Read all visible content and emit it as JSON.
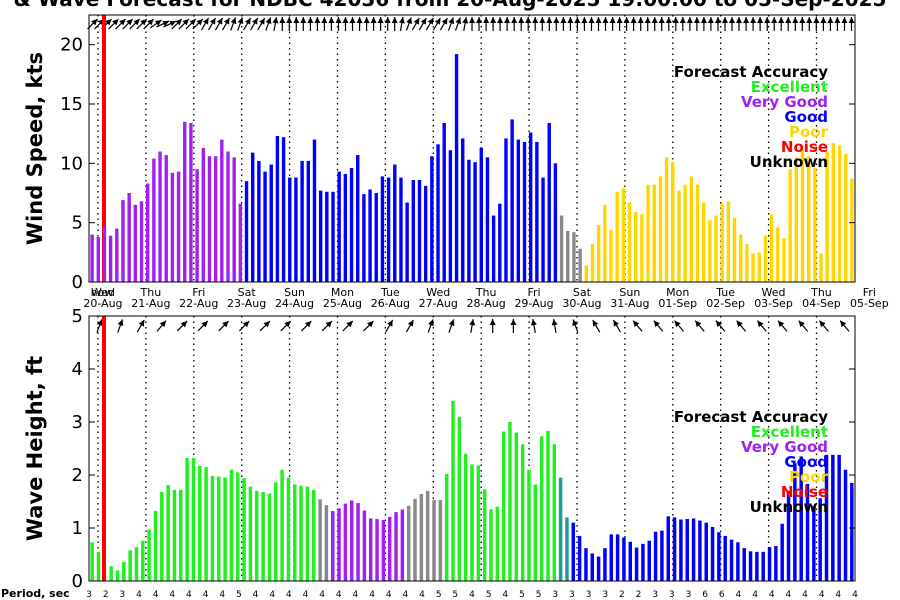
{
  "chart_data": {
    "title": "& Wave Forecast for NDBC 42036 from 20-Aug-2025 19:00:00 to 05-Sep-2025",
    "days": [
      {
        "dow": "Wed",
        "date": "20-Aug"
      },
      {
        "dow": "Thu",
        "date": "21-Aug"
      },
      {
        "dow": "Fri",
        "date": "22-Aug"
      },
      {
        "dow": "Sat",
        "date": "23-Aug"
      },
      {
        "dow": "Sun",
        "date": "24-Aug"
      },
      {
        "dow": "Mon",
        "date": "25-Aug"
      },
      {
        "dow": "Tue",
        "date": "26-Aug"
      },
      {
        "dow": "Wed",
        "date": "27-Aug"
      },
      {
        "dow": "Thu",
        "date": "28-Aug"
      },
      {
        "dow": "Fri",
        "date": "29-Aug"
      },
      {
        "dow": "Sat",
        "date": "30-Aug"
      },
      {
        "dow": "Sun",
        "date": "31-Aug"
      },
      {
        "dow": "Mon",
        "date": "01-Sep"
      },
      {
        "dow": "Tue",
        "date": "02-Sep"
      },
      {
        "dow": "Wed",
        "date": "03-Sep"
      },
      {
        "dow": "Thu",
        "date": "04-Sep"
      },
      {
        "dow": "Fri",
        "date": "05-Sep"
      }
    ],
    "now_marker": "now",
    "legend": {
      "title": "Forecast Accuracy",
      "entries": [
        {
          "label": "Excellent",
          "color": "#22ee22"
        },
        {
          "label": "Very Good",
          "color": "#a020f0"
        },
        {
          "label": "Good",
          "color": "#0000ff"
        },
        {
          "label": "Poor",
          "color": "#ffd700"
        },
        {
          "label": "Noise",
          "color": "#ff0000"
        },
        {
          "label": "Unknown",
          "color": "#000000"
        }
      ]
    },
    "colors": {
      "excellent": "#22ee22",
      "very_good": "#a020f0",
      "good": "#0000ff",
      "poor": "#ffd700",
      "noise": "#ff0000",
      "unknown": "#000000",
      "grey": "#888888",
      "good_purple_blend": "#5a6bd8",
      "verygood_green_blend": "#7a8a7a",
      "green_blue_blend": "#229999"
    },
    "wind": {
      "type": "bar",
      "ylabel": "Wind Speed, kts",
      "ylim": [
        0,
        22.5
      ],
      "yticks": [
        0,
        5,
        10,
        15,
        20
      ],
      "values": [
        4.0,
        3.8,
        4.7,
        3.9,
        4.5,
        6.9,
        7.5,
        6.5,
        6.8,
        8.3,
        10.4,
        11.0,
        10.7,
        9.2,
        9.3,
        13.5,
        13.4,
        9.5,
        11.3,
        10.6,
        10.6,
        12.0,
        11.0,
        10.5,
        6.6,
        8.5,
        10.9,
        10.2,
        9.3,
        9.9,
        12.3,
        12.2,
        8.8,
        8.8,
        10.2,
        10.2,
        12.0,
        7.7,
        7.6,
        7.6,
        9.3,
        9.1,
        9.6,
        10.7,
        7.4,
        7.8,
        7.5,
        8.9,
        8.8,
        9.9,
        8.8,
        6.7,
        8.6,
        8.6,
        8.1,
        10.6,
        11.6,
        13.4,
        11.1,
        19.2,
        12.1,
        10.3,
        10.1,
        11.3,
        10.5,
        5.6,
        6.6,
        12.1,
        13.7,
        12.0,
        11.8,
        12.6,
        11.8,
        8.8,
        13.4,
        10.0,
        5.6,
        4.3,
        4.2,
        2.8,
        1.4,
        3.2,
        4.8,
        6.5,
        4.4,
        7.6,
        7.9,
        6.7,
        5.9,
        5.7,
        8.2,
        8.2,
        8.9,
        10.5,
        10.1,
        7.7,
        8.2,
        8.9,
        8.2,
        6.7,
        5.2,
        5.6,
        6.6,
        6.8,
        5.4,
        4.0,
        3.2,
        2.4,
        2.5,
        3.9,
        5.7,
        4.6,
        3.7,
        9.5,
        10.5,
        11.2,
        10.6,
        9.6,
        2.4,
        11.0,
        11.7,
        11.5,
        10.8,
        8.7
      ],
      "accuracy": [
        "VG",
        "VG",
        "VG",
        "VG",
        "VG",
        "VG",
        "VG",
        "VG",
        "VG",
        "VG",
        "VG",
        "VG",
        "VG",
        "VG",
        "VG",
        "VG",
        "VG",
        "VG",
        "VG",
        "VG",
        "VG",
        "VG",
        "VG",
        "VG",
        "VG",
        "GD",
        "GD",
        "GD",
        "GD",
        "GD",
        "GD",
        "GD",
        "GD",
        "GD",
        "GD",
        "GD",
        "GD",
        "GD",
        "GD",
        "GD",
        "GD",
        "GD",
        "GD",
        "GD",
        "GD",
        "GD",
        "GD",
        "GD",
        "GD",
        "GD",
        "GD",
        "GD",
        "GD",
        "GD",
        "GD",
        "GD",
        "GD",
        "GD",
        "GD",
        "GD",
        "GD",
        "GD",
        "GD",
        "GD",
        "GD",
        "GD",
        "GD",
        "GD",
        "GD",
        "GD",
        "GD",
        "GD",
        "GD",
        "GD",
        "GD",
        "GD",
        "GR",
        "GR",
        "GR",
        "GR",
        "PR",
        "PR",
        "PR",
        "PR",
        "PR",
        "PR",
        "PR",
        "PR",
        "PR",
        "PR",
        "PR",
        "PR",
        "PR",
        "PR",
        "PR",
        "PR",
        "PR",
        "PR",
        "PR",
        "PR",
        "PR",
        "PR",
        "PR",
        "PR",
        "PR",
        "PR",
        "PR",
        "PR",
        "PR",
        "PR",
        "PR",
        "PR",
        "PR",
        "PR",
        "PR",
        "PR",
        "PR",
        "PR",
        "PR",
        "PR",
        "PR",
        "PR",
        "PR",
        "PR"
      ]
    },
    "wave": {
      "type": "bar",
      "ylabel": "Wave Height, ft",
      "ylim": [
        0,
        5
      ],
      "yticks": [
        0,
        1,
        2,
        3,
        4,
        5
      ],
      "values": [
        0.73,
        0.55,
        0.0,
        0.28,
        0.2,
        0.36,
        0.58,
        0.64,
        0.76,
        0.97,
        1.32,
        1.68,
        1.81,
        1.72,
        1.72,
        2.32,
        2.32,
        2.17,
        2.15,
        1.98,
        1.97,
        1.95,
        2.1,
        2.05,
        1.94,
        1.78,
        1.7,
        1.68,
        1.65,
        1.86,
        2.1,
        1.95,
        1.82,
        1.8,
        1.78,
        1.72,
        1.54,
        1.43,
        1.32,
        1.37,
        1.46,
        1.52,
        1.47,
        1.33,
        1.18,
        1.17,
        1.15,
        1.21,
        1.3,
        1.35,
        1.42,
        1.55,
        1.64,
        1.7,
        1.53,
        1.53,
        2.02,
        3.4,
        3.1,
        2.4,
        2.2,
        2.18,
        1.73,
        1.35,
        1.4,
        2.82,
        3.0,
        2.8,
        2.58,
        2.1,
        1.82,
        2.73,
        2.83,
        2.58,
        1.95,
        1.2,
        1.1,
        0.85,
        0.62,
        0.52,
        0.46,
        0.62,
        0.88,
        0.88,
        0.82,
        0.74,
        0.63,
        0.7,
        0.76,
        0.93,
        0.95,
        1.22,
        1.2,
        1.16,
        1.17,
        1.18,
        1.14,
        1.1,
        1.02,
        0.92,
        0.85,
        0.78,
        0.73,
        0.62,
        0.56,
        0.55,
        0.55,
        0.64,
        0.66,
        1.08,
        1.7,
        2.22,
        2.35,
        1.83,
        1.42,
        1.56,
        2.38,
        2.38,
        2.38,
        2.1,
        1.85
      ],
      "accuracy": [
        "EX",
        "EX",
        "NS",
        "EX",
        "EX",
        "EX",
        "EX",
        "EX",
        "EX",
        "EX",
        "EX",
        "EX",
        "EX",
        "EX",
        "EX",
        "EX",
        "EX",
        "EX",
        "EX",
        "EX",
        "EX",
        "EX",
        "EX",
        "EX",
        "EX",
        "EX",
        "EX",
        "EX",
        "EX",
        "EX",
        "EX",
        "EX",
        "EX",
        "EX",
        "EX",
        "EX",
        "GR",
        "GR",
        "VG",
        "VG",
        "VG",
        "VG",
        "VG",
        "VG",
        "VG",
        "VG",
        "VG",
        "VG",
        "VG",
        "VG",
        "GR",
        "GR",
        "GR",
        "GR",
        "GR",
        "GR",
        "EX",
        "EX",
        "EX",
        "EX",
        "EX",
        "EX",
        "EX",
        "EX",
        "EX",
        "EX",
        "EX",
        "EX",
        "EX",
        "EX",
        "EX",
        "EX",
        "EX",
        "EX",
        "GB",
        "GB",
        "GD",
        "GD",
        "GD",
        "GD",
        "GD",
        "GD",
        "GD",
        "GD",
        "GD",
        "GD",
        "GD",
        "GD",
        "GD",
        "GD",
        "GD",
        "GD",
        "GD",
        "GD",
        "GD",
        "GD",
        "GD",
        "GD",
        "GD",
        "GD",
        "GD",
        "GD",
        "GD",
        "GD",
        "GD",
        "GD",
        "GD",
        "GD",
        "GD",
        "GD",
        "GD",
        "GD",
        "GD",
        "GD",
        "GD",
        "GD",
        "GD",
        "GD",
        "GD",
        "GD",
        "GD"
      ]
    },
    "arrows_wind": [
      225,
      225,
      225,
      225,
      225,
      225,
      225,
      225,
      225,
      235,
      245,
      245,
      225,
      225,
      225,
      225,
      210,
      210,
      210,
      210,
      200,
      200,
      210,
      210,
      210,
      200,
      190,
      180,
      180,
      180,
      180,
      180,
      180,
      180,
      180,
      180,
      180,
      180,
      180,
      180,
      180,
      180,
      180,
      180,
      190,
      200,
      210,
      210,
      210,
      210,
      210,
      200,
      200,
      190,
      180,
      180,
      180,
      180,
      180,
      180,
      180,
      180,
      180,
      180,
      180,
      180,
      180,
      180,
      180,
      180,
      180,
      180,
      180,
      180,
      180,
      180,
      180,
      180,
      180,
      180,
      180,
      180,
      180,
      180,
      180,
      180,
      180,
      180,
      180,
      180,
      180,
      180,
      180,
      180,
      180,
      180,
      180,
      180,
      180,
      180,
      180,
      180,
      180,
      180,
      180,
      180,
      180,
      180,
      180
    ],
    "arrows_wave": [
      200,
      200,
      210,
      220,
      225,
      225,
      225,
      225,
      225,
      225,
      225,
      225,
      225,
      225,
      210,
      210,
      200,
      200,
      190,
      180,
      180,
      170,
      170,
      160,
      150,
      150,
      140,
      140,
      140,
      140,
      140,
      140,
      140,
      140,
      140,
      140,
      140
    ],
    "period_title": "Period, sec",
    "periods": [
      "3",
      "2",
      "3",
      "4",
      "4",
      "4",
      "4",
      "4",
      "4",
      "5",
      "4",
      "4",
      "4",
      "4",
      "4",
      "4",
      "4",
      "4",
      "4",
      "4",
      "4",
      "5",
      "5",
      "4",
      "5",
      "4",
      "5",
      "5",
      "3",
      "3",
      "3",
      "3",
      "2",
      "2",
      "3",
      "3",
      "3",
      "6",
      "6",
      "4",
      "4",
      "4",
      "4",
      "4",
      "4",
      "4",
      "4"
    ]
  }
}
